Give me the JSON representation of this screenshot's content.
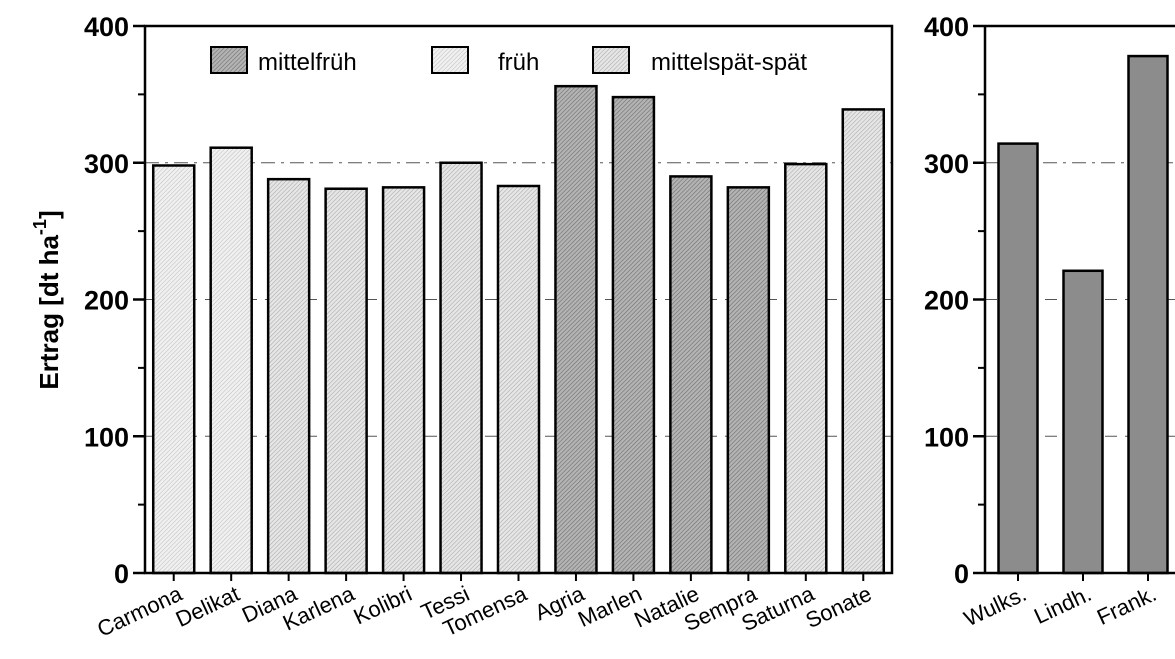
{
  "chart_data": [
    {
      "type": "bar",
      "ylabel": "Ertrag [dt ha",
      "ylabel_sup": "-1",
      "ylabel_close": "]",
      "ylim": [
        0,
        400
      ],
      "yticks": [
        0,
        100,
        200,
        300,
        400
      ],
      "reference_line": 300,
      "legend_position": "top",
      "legend": [
        {
          "label": "mittelfrüh",
          "color": "#9a9a9a"
        },
        {
          "label": "früh",
          "color": "#e2e2e2"
        },
        {
          "label": "mittelspät-spät",
          "color": "#cfcfcf"
        }
      ],
      "categories": [
        "Carmona",
        "Delikat",
        "Diana",
        "Karlena",
        "Kolibri",
        "Tessi",
        "Tomensa",
        "Agria",
        "Marlen",
        "Natalie",
        "Sempra",
        "Saturna",
        "Sonate"
      ],
      "values": [
        298,
        311,
        288,
        281,
        282,
        300,
        283,
        356,
        348,
        290,
        282,
        299,
        339
      ],
      "groups": [
        "früh",
        "früh",
        "mittelspät-spät",
        "mittelspät-spät",
        "mittelspät-spät",
        "mittelspät-spät",
        "mittelspät-spät",
        "mittelfrüh",
        "mittelfrüh",
        "mittelfrüh",
        "mittelfrüh",
        "mittelspät-spät",
        "mittelspät-spät"
      ]
    },
    {
      "type": "bar",
      "ylim": [
        0,
        400
      ],
      "yticks": [
        0,
        100,
        200,
        300,
        400
      ],
      "reference_line": 300,
      "bar_color": "#8c8c8c",
      "categories": [
        "Wulks.",
        "Lindh.",
        "Frank."
      ],
      "values": [
        314,
        221,
        378
      ]
    }
  ],
  "colors": {
    "mittelfrüh": "#9a9a9a",
    "früh": "#e2e2e2",
    "mittelspät-spät": "#cfcfcf",
    "right_bars": "#8c8c8c"
  }
}
